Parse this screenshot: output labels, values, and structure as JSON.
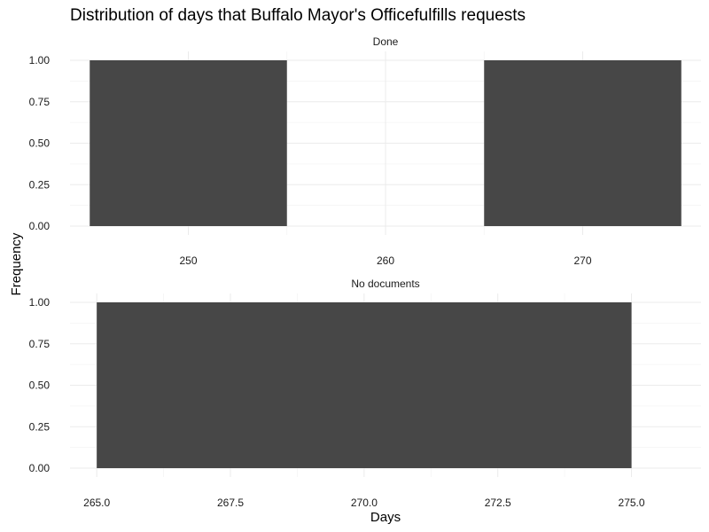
{
  "chart_data": {
    "type": "bar",
    "title": "Distribution of days that Buffalo Mayor's Officefulfills requests",
    "xlabel": "Days",
    "ylabel": "Frequency",
    "grid": true,
    "legend": "none",
    "bar_color": "#474747",
    "panels": [
      {
        "label": "Done",
        "xlim": [
          244,
          276
        ],
        "ylim": [
          0,
          1
        ],
        "x_ticks": [
          250,
          260,
          270
        ],
        "x_tick_labels": [
          "250",
          "260",
          "270"
        ],
        "y_ticks": [
          0,
          0.25,
          0.5,
          0.75,
          1
        ],
        "y_tick_labels": [
          "0.00",
          "0.25",
          "0.50",
          "0.75",
          "1.00"
        ],
        "bars": [
          {
            "x_start": 245,
            "x_end": 255,
            "value": 1
          },
          {
            "x_start": 265,
            "x_end": 275,
            "value": 1
          }
        ]
      },
      {
        "label": "No documents",
        "xlim": [
          264.5,
          276.3
        ],
        "ylim": [
          0,
          1
        ],
        "x_ticks": [
          265,
          267.5,
          270,
          272.5,
          275
        ],
        "x_tick_labels": [
          "265.0",
          "267.5",
          "270.0",
          "272.5",
          "275.0"
        ],
        "y_ticks": [
          0,
          0.25,
          0.5,
          0.75,
          1
        ],
        "y_tick_labels": [
          "0.00",
          "0.25",
          "0.50",
          "0.75",
          "1.00"
        ],
        "bars": [
          {
            "x_start": 265,
            "x_end": 275,
            "value": 1
          }
        ]
      }
    ]
  }
}
